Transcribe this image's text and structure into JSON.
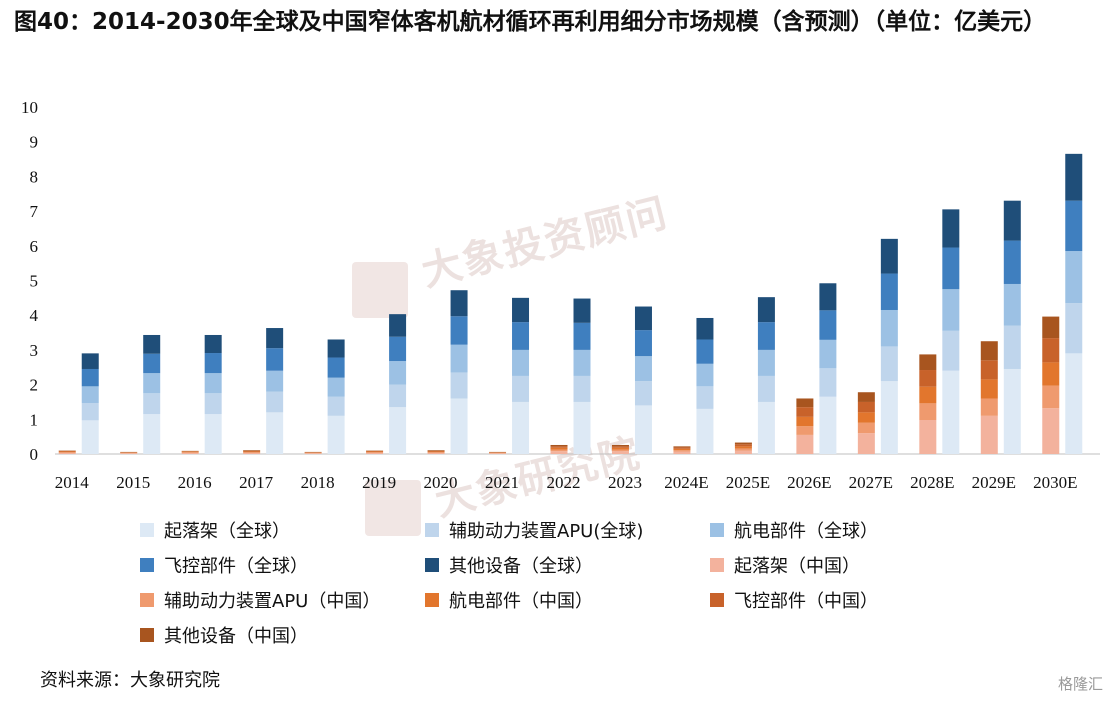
{
  "header": {
    "title": "图40：2014-2030年全球及中国窄体客机航材循环再利用细分市场规模（含预测）（单位：亿美元）"
  },
  "source": "资料来源：大象研究院",
  "watermark": {
    "text1": "大象投资顾问",
    "text2": "大象研究院"
  },
  "corner_logo": "格隆汇",
  "colors": {
    "global_landing": "#dde9f5",
    "global_apu": "#bfd5ec",
    "global_avionics": "#9cc1e4",
    "global_flight": "#3f7fbf",
    "global_other": "#1f4e79",
    "china_landing": "#f3b29d",
    "china_apu": "#ef9a6e",
    "china_avionics": "#e2762d",
    "china_flight": "#c8622a",
    "china_other": "#a8551f"
  },
  "chart_data": {
    "type": "bar",
    "stacked": true,
    "title": "2014-2030年全球及中国窄体客机航材循环再利用细分市场规模（含预测）",
    "ylabel": "亿美元",
    "ylim": [
      0,
      10
    ],
    "yticks": [
      0,
      1,
      2,
      3,
      4,
      5,
      6,
      7,
      8,
      9,
      10
    ],
    "categories": [
      "2014",
      "2015",
      "2016",
      "2017",
      "2018",
      "2019",
      "2020",
      "2021",
      "2022",
      "2023",
      "2024E",
      "2025E",
      "2026E",
      "2027E",
      "2028E",
      "2029E",
      "2030E"
    ],
    "groups": [
      {
        "name": "全球",
        "series": [
          {
            "name": "起落架（全球）",
            "color_key": "global_landing",
            "values": [
              0.97,
              1.15,
              1.15,
              1.2,
              1.1,
              1.35,
              1.6,
              1.5,
              1.5,
              1.4,
              1.3,
              1.5,
              1.65,
              2.1,
              2.4,
              2.45,
              2.9
            ]
          },
          {
            "name": "辅助动力装置APU(全球)",
            "color_key": "global_apu",
            "values": [
              0.5,
              0.6,
              0.6,
              0.6,
              0.55,
              0.65,
              0.75,
              0.75,
              0.75,
              0.7,
              0.65,
              0.75,
              0.82,
              1.0,
              1.15,
              1.25,
              1.45
            ]
          },
          {
            "name": "航电部件（全球）",
            "color_key": "global_apu2",
            "values": [
              0.48,
              0.58,
              0.58,
              0.6,
              0.55,
              0.68,
              0.8,
              0.75,
              0.75,
              0.72,
              0.65,
              0.75,
              0.82,
              1.05,
              1.2,
              1.2,
              1.5
            ]
          },
          {
            "name": "飞控部件（全球）",
            "color_key": "global_flight",
            "values": [
              0.5,
              0.56,
              0.58,
              0.65,
              0.58,
              0.7,
              0.82,
              0.8,
              0.78,
              0.75,
              0.7,
              0.8,
              0.85,
              1.05,
              1.2,
              1.25,
              1.45
            ]
          },
          {
            "name": "其他设备（全球）",
            "color_key": "global_other",
            "values": [
              0.45,
              0.54,
              0.52,
              0.58,
              0.52,
              0.65,
              0.75,
              0.7,
              0.7,
              0.68,
              0.62,
              0.72,
              0.78,
              1.0,
              1.1,
              1.15,
              1.35
            ]
          }
        ]
      },
      {
        "name": "中国",
        "series": [
          {
            "name": "起落架（中国）",
            "color_key": "china_landing",
            "values": [
              0.03,
              0.02,
              0.03,
              0.03,
              0.02,
              0.03,
              0.03,
              0.02,
              0.08,
              0.08,
              0.07,
              0.1,
              0.55,
              0.6,
              0.98,
              1.1,
              1.32
            ]
          },
          {
            "name": "辅助动力装置APU（中国）",
            "color_key": "china_apu",
            "values": [
              0.02,
              0.01,
              0.02,
              0.02,
              0.01,
              0.02,
              0.02,
              0.01,
              0.05,
              0.05,
              0.04,
              0.06,
              0.25,
              0.3,
              0.48,
              0.5,
              0.65
            ]
          },
          {
            "name": "航电部件（中国）",
            "color_key": "china_avionics",
            "values": [
              0.02,
              0.01,
              0.02,
              0.02,
              0.01,
              0.02,
              0.02,
              0.01,
              0.05,
              0.05,
              0.04,
              0.06,
              0.27,
              0.3,
              0.48,
              0.55,
              0.67
            ]
          },
          {
            "name": "飞控部件（中国）",
            "color_key": "china_flight",
            "values": [
              0.02,
              0.01,
              0.01,
              0.02,
              0.01,
              0.02,
              0.02,
              0.01,
              0.04,
              0.04,
              0.04,
              0.06,
              0.28,
              0.3,
              0.48,
              0.55,
              0.7
            ]
          },
          {
            "name": "其他设备（中国）",
            "color_key": "china_other",
            "values": [
              0.01,
              0.01,
              0.01,
              0.02,
              0.01,
              0.01,
              0.02,
              0.01,
              0.04,
              0.04,
              0.03,
              0.05,
              0.25,
              0.28,
              0.45,
              0.55,
              0.62
            ]
          }
        ]
      }
    ],
    "legend": [
      {
        "label": "起落架（全球）",
        "color_key": "global_landing"
      },
      {
        "label": "辅助动力装置APU(全球)",
        "color_key": "global_apu"
      },
      {
        "label": "航电部件（全球）",
        "color_key": "global_avionics"
      },
      {
        "label": "飞控部件（全球）",
        "color_key": "global_flight"
      },
      {
        "label": "其他设备（全球）",
        "color_key": "global_other"
      },
      {
        "label": "起落架（中国）",
        "color_key": "china_landing"
      },
      {
        "label": "辅助动力装置APU（中国）",
        "color_key": "china_apu"
      },
      {
        "label": "航电部件（中国）",
        "color_key": "china_avionics"
      },
      {
        "label": "飞控部件（中国）",
        "color_key": "china_flight"
      },
      {
        "label": "其他设备（中国）",
        "color_key": "china_other"
      }
    ],
    "legend_position": "bottom"
  }
}
